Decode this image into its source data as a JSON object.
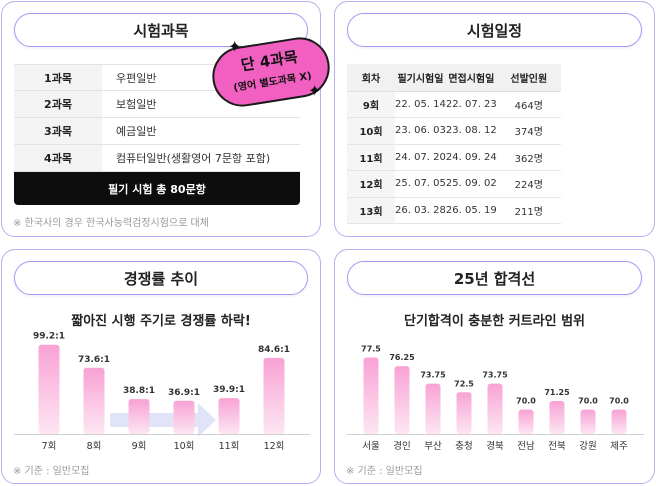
{
  "subjects": {
    "title": "시험과목",
    "rows": [
      {
        "label": "1과목",
        "value": "우편일반"
      },
      {
        "label": "2과목",
        "value": "보험일반"
      },
      {
        "label": "3과목",
        "value": "예금일반"
      },
      {
        "label": "4과목",
        "value": "컴퓨터일반(생활영어 7문항 포함)"
      }
    ],
    "total": "필기 시험 총 80문항",
    "note": "※ 한국사의 경우 한국사능력검정시험으로 대체",
    "badge_line1": "단 4과목",
    "badge_line2": "(영어 별도과목 X)"
  },
  "schedule": {
    "title": "시험일정",
    "headers": [
      "회차",
      "필기시험일",
      "면접시험일",
      "선발인원"
    ],
    "rows": [
      [
        "9회",
        "22. 05. 14",
        "22. 07. 23",
        "464명"
      ],
      [
        "10회",
        "23. 06. 03",
        "23. 08. 12",
        "374명"
      ],
      [
        "11회",
        "24. 07. 20",
        "24. 09. 24",
        "362명"
      ],
      [
        "12회",
        "25. 07. 05",
        "25. 09. 02",
        "224명"
      ],
      [
        "13회",
        "26. 03. 28",
        "26. 05. 19",
        "211명"
      ]
    ]
  },
  "competition": {
    "title": "경쟁률 추이",
    "subtitle": "짧아진 시행 주기로 경쟁률 하락!",
    "note": "※ 기준 : 일반모집"
  },
  "pass": {
    "title": "25년 합격선",
    "subtitle": "단기합격이 충분한 커트라인 범위",
    "note": "※ 기준 : 일반모집"
  },
  "chart_data": [
    {
      "type": "bar",
      "categories": [
        "7회",
        "8회",
        "9회",
        "10회",
        "11회",
        "12회"
      ],
      "values": [
        99.2,
        73.6,
        38.8,
        36.9,
        39.9,
        84.6
      ],
      "labels": [
        "99.2:1",
        "73.6:1",
        "38.8:1",
        "36.9:1",
        "39.9:1",
        "84.6:1"
      ],
      "ylim": [
        0,
        100
      ]
    },
    {
      "type": "bar",
      "categories": [
        "서울",
        "경인",
        "부산",
        "충청",
        "경북",
        "전남",
        "전북",
        "강원",
        "제주"
      ],
      "values": [
        77.5,
        76.25,
        73.75,
        72.5,
        73.75,
        70.0,
        71.25,
        70.0,
        70.0
      ],
      "labels": [
        "77.5",
        "76.25",
        "73.75",
        "72.5",
        "73.75",
        "70.0",
        "71.25",
        "70.0",
        "70.0"
      ],
      "ylim": [
        66.5,
        78
      ]
    }
  ],
  "colors": {
    "accent": "#b9aef0",
    "bar_top": "#f8a2d4",
    "bar_bottom": "#fde6f3",
    "badge": "#f15fc0"
  }
}
